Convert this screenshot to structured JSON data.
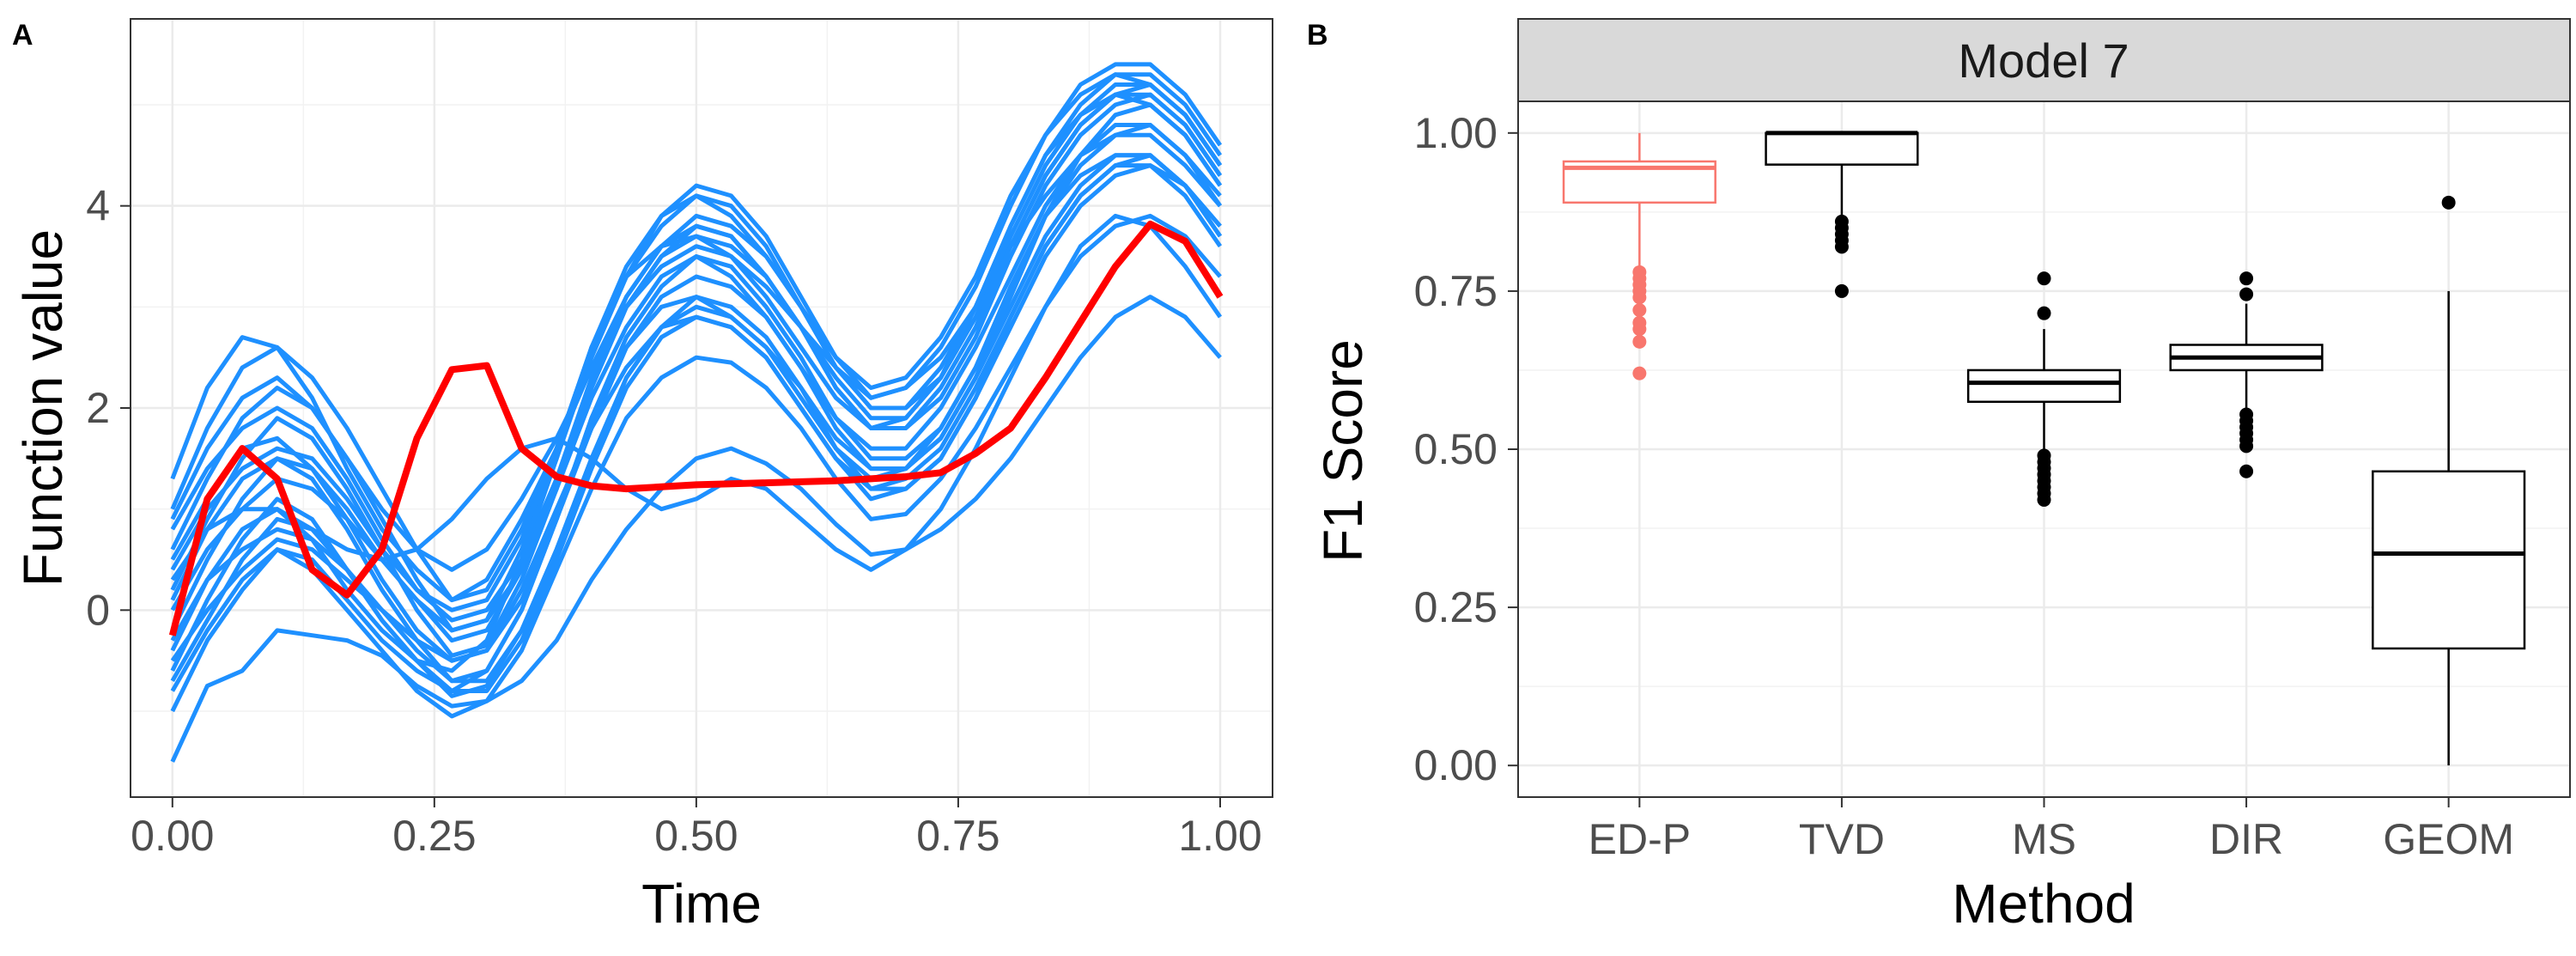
{
  "chart_data": [
    {
      "panel": "A",
      "type": "line",
      "xlabel": "Time",
      "ylabel": "Function value",
      "xlim": [
        -0.04,
        1.05
      ],
      "ylim": [
        -1.85,
        5.85
      ],
      "x_ticks": [
        "0.00",
        "0.25",
        "0.50",
        "0.75",
        "1.00"
      ],
      "x_tick_values": [
        0,
        0.25,
        0.5,
        0.75,
        1.0
      ],
      "y_ticks": [
        "0",
        "2",
        "4"
      ],
      "y_tick_values": [
        0,
        2,
        4
      ],
      "grid": true,
      "series_colors": {
        "curves": "#1E90FF",
        "highlight": "#FF0000"
      },
      "x": [
        0,
        0.0333,
        0.0667,
        0.1,
        0.1333,
        0.1667,
        0.2,
        0.2333,
        0.2667,
        0.3,
        0.3333,
        0.3667,
        0.4,
        0.4333,
        0.4667,
        0.5,
        0.5333,
        0.5667,
        0.6,
        0.6333,
        0.6667,
        0.7,
        0.7333,
        0.7667,
        0.8,
        0.8333,
        0.8667,
        0.9,
        0.9333,
        0.9667,
        1.0
      ],
      "curves": [
        [
          -1.5,
          -0.75,
          -0.6,
          -0.2,
          -0.25,
          -0.3,
          -0.45,
          -0.75,
          -0.95,
          -0.9,
          -0.7,
          -0.3,
          0.3,
          0.8,
          1.2,
          1.5,
          1.6,
          1.45,
          1.2,
          0.85,
          0.55,
          0.6,
          0.8,
          1.1,
          1.5,
          2.0,
          2.5,
          2.9,
          3.1,
          2.9,
          2.5
        ],
        [
          -1.0,
          -0.3,
          0.2,
          0.6,
          0.4,
          0.0,
          -0.4,
          -0.8,
          -1.05,
          -0.9,
          -0.4,
          0.4,
          1.2,
          1.9,
          2.3,
          2.5,
          2.45,
          2.2,
          1.8,
          1.3,
          0.9,
          0.95,
          1.3,
          1.8,
          2.4,
          3.0,
          3.5,
          3.8,
          3.9,
          3.7,
          3.3
        ],
        [
          -0.6,
          0.1,
          0.7,
          1.1,
          0.9,
          0.4,
          -0.1,
          -0.5,
          -0.85,
          -0.75,
          -0.2,
          0.6,
          1.5,
          2.3,
          2.8,
          3.1,
          3.0,
          2.7,
          2.2,
          1.6,
          1.2,
          1.2,
          1.5,
          2.1,
          2.8,
          3.5,
          4.0,
          4.3,
          4.4,
          4.2,
          3.8
        ],
        [
          -0.2,
          0.5,
          1.1,
          1.5,
          1.3,
          0.8,
          0.2,
          -0.3,
          -0.7,
          -0.6,
          0.0,
          0.9,
          1.9,
          2.7,
          3.2,
          3.5,
          3.4,
          3.0,
          2.5,
          1.9,
          1.5,
          1.5,
          1.8,
          2.4,
          3.2,
          3.9,
          4.4,
          4.7,
          4.8,
          4.5,
          4.1
        ],
        [
          0.2,
          0.9,
          1.5,
          1.9,
          1.7,
          1.2,
          0.6,
          0.0,
          -0.45,
          -0.35,
          0.3,
          1.2,
          2.2,
          3.0,
          3.5,
          3.8,
          3.7,
          3.3,
          2.8,
          2.2,
          1.8,
          1.8,
          2.1,
          2.7,
          3.5,
          4.2,
          4.7,
          5.0,
          5.1,
          4.8,
          4.3
        ],
        [
          0.6,
          1.3,
          1.9,
          2.2,
          2.0,
          1.5,
          0.9,
          0.3,
          -0.2,
          -0.1,
          0.6,
          1.5,
          2.5,
          3.3,
          3.8,
          4.1,
          4.0,
          3.6,
          3.0,
          2.4,
          2.0,
          2.0,
          2.4,
          3.0,
          3.8,
          4.5,
          5.0,
          5.3,
          5.3,
          5.0,
          4.5
        ],
        [
          1.0,
          1.8,
          2.4,
          2.6,
          2.3,
          1.8,
          1.2,
          0.6,
          0.1,
          0.2,
          0.8,
          1.6,
          2.6,
          3.3,
          3.9,
          4.2,
          4.1,
          3.7,
          3.1,
          2.5,
          2.1,
          2.2,
          2.6,
          3.2,
          4.0,
          4.7,
          5.2,
          5.4,
          5.4,
          5.1,
          4.6
        ],
        [
          1.3,
          2.2,
          2.7,
          2.6,
          2.1,
          1.4,
          0.8,
          0.4,
          0.1,
          0.3,
          0.9,
          1.6,
          2.4,
          3.1,
          3.6,
          3.9,
          3.8,
          3.5,
          3.0,
          2.5,
          2.2,
          2.3,
          2.7,
          3.3,
          4.1,
          4.7,
          5.1,
          5.3,
          5.2,
          4.9,
          4.4
        ],
        [
          0.9,
          1.6,
          2.1,
          2.3,
          2.0,
          1.5,
          1.0,
          0.6,
          0.4,
          0.6,
          1.1,
          1.7,
          2.4,
          3.0,
          3.4,
          3.6,
          3.5,
          3.2,
          2.8,
          2.4,
          2.1,
          2.2,
          2.5,
          3.0,
          3.6,
          4.1,
          4.5,
          4.7,
          4.7,
          4.4,
          4.0
        ],
        [
          0.3,
          0.8,
          1.0,
          1.0,
          0.8,
          0.6,
          0.5,
          0.6,
          0.9,
          1.3,
          1.6,
          1.7,
          1.5,
          1.2,
          1.0,
          1.1,
          1.3,
          1.2,
          0.9,
          0.6,
          0.4,
          0.6,
          1.0,
          1.6,
          2.3,
          3.0,
          3.6,
          3.9,
          3.8,
          3.4,
          2.9
        ],
        [
          -0.4,
          0.3,
          0.8,
          1.0,
          0.7,
          0.2,
          -0.2,
          -0.5,
          -0.6,
          -0.3,
          0.5,
          1.5,
          2.6,
          3.3,
          3.6,
          3.7,
          3.5,
          3.1,
          2.6,
          2.1,
          1.8,
          1.9,
          2.3,
          3.0,
          3.8,
          4.5,
          4.9,
          5.1,
          5.0,
          4.7,
          4.2
        ],
        [
          0.0,
          0.6,
          1.0,
          1.3,
          1.2,
          0.9,
          0.5,
          0.1,
          -0.2,
          -0.1,
          0.4,
          1.2,
          2.1,
          2.8,
          3.3,
          3.5,
          3.3,
          2.9,
          2.4,
          1.9,
          1.6,
          1.6,
          2.0,
          2.6,
          3.3,
          4.0,
          4.5,
          4.8,
          4.8,
          4.5,
          4.0
        ],
        [
          0.5,
          1.1,
          1.6,
          1.7,
          1.4,
          0.9,
          0.3,
          -0.2,
          -0.5,
          -0.4,
          0.1,
          0.9,
          1.8,
          2.6,
          3.1,
          3.3,
          3.2,
          2.9,
          2.4,
          1.8,
          1.4,
          1.4,
          1.7,
          2.3,
          3.1,
          3.9,
          4.5,
          4.9,
          5.0,
          4.7,
          4.2
        ],
        [
          -0.8,
          -0.2,
          0.3,
          0.6,
          0.5,
          0.1,
          -0.3,
          -0.6,
          -0.8,
          -0.6,
          0.0,
          0.9,
          1.9,
          2.6,
          3.0,
          3.1,
          2.9,
          2.6,
          2.1,
          1.6,
          1.3,
          1.4,
          1.8,
          2.4,
          3.2,
          3.9,
          4.3,
          4.5,
          4.5,
          4.2,
          3.7
        ],
        [
          0.8,
          1.4,
          1.8,
          2.0,
          1.8,
          1.3,
          0.7,
          0.2,
          -0.1,
          0.0,
          0.5,
          1.3,
          2.2,
          3.0,
          3.5,
          3.7,
          3.6,
          3.3,
          2.8,
          2.3,
          1.9,
          1.9,
          2.3,
          2.9,
          3.7,
          4.4,
          4.9,
          5.2,
          5.2,
          4.9,
          4.4
        ],
        [
          -0.3,
          0.3,
          0.6,
          0.8,
          0.7,
          0.4,
          0.0,
          -0.3,
          -0.5,
          -0.4,
          0.2,
          1.0,
          1.8,
          2.4,
          2.8,
          2.9,
          2.8,
          2.5,
          2.0,
          1.5,
          1.1,
          1.2,
          1.5,
          2.1,
          2.9,
          3.6,
          4.1,
          4.4,
          4.5,
          4.2,
          3.7
        ],
        [
          0.4,
          1.0,
          1.4,
          1.6,
          1.5,
          1.1,
          0.6,
          0.2,
          0.0,
          0.1,
          0.7,
          1.6,
          2.6,
          3.4,
          3.9,
          4.1,
          3.9,
          3.5,
          3.0,
          2.4,
          2.0,
          2.0,
          2.3,
          2.9,
          3.6,
          4.3,
          4.8,
          5.1,
          5.1,
          4.8,
          4.3
        ],
        [
          -0.5,
          0.0,
          0.4,
          0.7,
          0.6,
          0.3,
          0.0,
          -0.4,
          -0.7,
          -0.7,
          -0.2,
          0.6,
          1.5,
          2.3,
          2.8,
          3.0,
          2.9,
          2.6,
          2.2,
          1.7,
          1.4,
          1.4,
          1.7,
          2.3,
          3.0,
          3.7,
          4.2,
          4.5,
          4.5,
          4.2,
          3.8
        ],
        [
          0.1,
          0.8,
          1.3,
          1.5,
          1.4,
          1.0,
          0.5,
          0.1,
          -0.3,
          -0.2,
          0.4,
          1.3,
          2.3,
          3.1,
          3.6,
          3.8,
          3.7,
          3.3,
          2.8,
          2.2,
          1.8,
          1.8,
          2.2,
          2.8,
          3.6,
          4.3,
          4.8,
          5.1,
          5.2,
          4.9,
          4.4
        ],
        [
          -0.7,
          -0.1,
          0.5,
          0.9,
          0.8,
          0.4,
          -0.1,
          -0.5,
          -0.8,
          -0.8,
          -0.3,
          0.5,
          1.4,
          2.2,
          2.7,
          2.9,
          2.8,
          2.5,
          2.0,
          1.5,
          1.2,
          1.3,
          1.6,
          2.2,
          2.9,
          3.6,
          4.1,
          4.4,
          4.4,
          4.1,
          3.6
        ]
      ],
      "highlight": [
        -0.25,
        1.1,
        1.6,
        1.3,
        0.4,
        0.15,
        0.6,
        1.7,
        2.38,
        2.42,
        1.6,
        1.32,
        1.23,
        1.2,
        1.22,
        1.24,
        1.25,
        1.26,
        1.27,
        1.28,
        1.3,
        1.32,
        1.36,
        1.55,
        1.8,
        2.3,
        2.85,
        3.4,
        3.82,
        3.65,
        3.1
      ]
    },
    {
      "panel": "B",
      "type": "boxplot",
      "facet_label": "Model 7",
      "xlabel": "Method",
      "ylabel": "F1 Score",
      "ylim": [
        -0.05,
        1.05
      ],
      "y_ticks": [
        "0.00",
        "0.25",
        "0.50",
        "0.75",
        "1.00"
      ],
      "y_tick_values": [
        0,
        0.25,
        0.5,
        0.75,
        1.0
      ],
      "grid": true,
      "categories": [
        "ED-P",
        "TVD",
        "MS",
        "DIR",
        "GEOM"
      ],
      "colors": [
        "#F8766D",
        "#000000",
        "#000000",
        "#000000",
        "#000000"
      ],
      "boxes": [
        {
          "whisker_low": 0.79,
          "q1": 0.89,
          "median": 0.945,
          "q3": 0.955,
          "whisker_high": 1.0,
          "outliers": [
            0.78,
            0.77,
            0.76,
            0.75,
            0.74,
            0.72,
            0.7,
            0.69,
            0.67,
            0.62
          ]
        },
        {
          "whisker_low": 0.87,
          "q1": 0.95,
          "median": 1.0,
          "q3": 1.0,
          "whisker_high": 1.0,
          "outliers": [
            0.86,
            0.85,
            0.84,
            0.83,
            0.82,
            0.75
          ]
        },
        {
          "whisker_low": 0.5,
          "q1": 0.575,
          "median": 0.605,
          "q3": 0.625,
          "whisker_high": 0.69,
          "outliers": [
            0.77,
            0.715,
            0.49,
            0.48,
            0.47,
            0.46,
            0.45,
            0.44,
            0.43,
            0.42
          ]
        },
        {
          "whisker_low": 0.56,
          "q1": 0.625,
          "median": 0.645,
          "q3": 0.665,
          "whisker_high": 0.73,
          "outliers": [
            0.77,
            0.745,
            0.555,
            0.545,
            0.535,
            0.525,
            0.515,
            0.505,
            0.465
          ]
        },
        {
          "whisker_low": 0.0,
          "q1": 0.185,
          "median": 0.335,
          "q3": 0.465,
          "whisker_high": 0.75,
          "outliers": [
            0.89
          ]
        }
      ]
    }
  ]
}
